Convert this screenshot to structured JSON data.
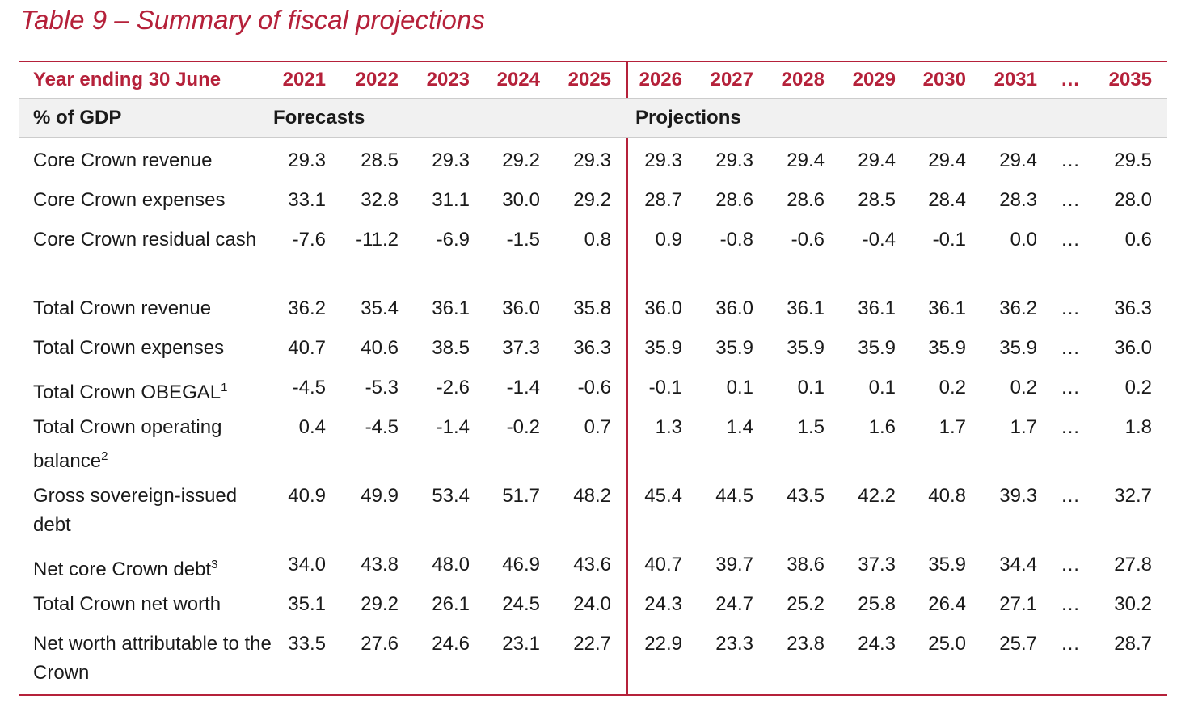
{
  "title": "Table 9 – Summary of fiscal projections",
  "header": {
    "label": "Year ending 30 June",
    "years": [
      "2021",
      "2022",
      "2023",
      "2024",
      "2025",
      "2026",
      "2027",
      "2028",
      "2029",
      "2030",
      "2031",
      "…",
      "2035"
    ]
  },
  "subheader": {
    "label": "% of GDP",
    "forecasts": "Forecasts",
    "projections": "Projections"
  },
  "rows": [
    {
      "label": "Core Crown revenue",
      "values": [
        "29.3",
        "28.5",
        "29.3",
        "29.2",
        "29.3",
        "29.3",
        "29.3",
        "29.4",
        "29.4",
        "29.4",
        "29.4",
        "…",
        "29.5"
      ]
    },
    {
      "label": "Core Crown expenses",
      "values": [
        "33.1",
        "32.8",
        "31.1",
        "30.0",
        "29.2",
        "28.7",
        "28.6",
        "28.6",
        "28.5",
        "28.4",
        "28.3",
        "…",
        "28.0"
      ]
    },
    {
      "label": "Core Crown residual cash",
      "values": [
        "-7.6",
        "-11.2",
        "-6.9",
        "-1.5",
        "0.8",
        "0.9",
        "-0.8",
        "-0.6",
        "-0.4",
        "-0.1",
        "0.0",
        "…",
        "0.6"
      ]
    },
    {
      "label": "Total Crown revenue",
      "values": [
        "36.2",
        "35.4",
        "36.1",
        "36.0",
        "35.8",
        "36.0",
        "36.0",
        "36.1",
        "36.1",
        "36.1",
        "36.2",
        "…",
        "36.3"
      ]
    },
    {
      "label": "Total Crown expenses",
      "values": [
        "40.7",
        "40.6",
        "38.5",
        "37.3",
        "36.3",
        "35.9",
        "35.9",
        "35.9",
        "35.9",
        "35.9",
        "35.9",
        "…",
        "36.0"
      ]
    },
    {
      "label": "Total Crown OBEGAL",
      "sup": "1",
      "values": [
        "-4.5",
        "-5.3",
        "-2.6",
        "-1.4",
        "-0.6",
        "-0.1",
        "0.1",
        "0.1",
        "0.1",
        "0.2",
        "0.2",
        "…",
        "0.2"
      ]
    },
    {
      "label": "Total Crown operating balance",
      "sup": "2",
      "values": [
        "0.4",
        "-4.5",
        "-1.4",
        "-0.2",
        "0.7",
        "1.3",
        "1.4",
        "1.5",
        "1.6",
        "1.7",
        "1.7",
        "…",
        "1.8"
      ]
    },
    {
      "label": "Gross sovereign-issued debt",
      "values": [
        "40.9",
        "49.9",
        "53.4",
        "51.7",
        "48.2",
        "45.4",
        "44.5",
        "43.5",
        "42.2",
        "40.8",
        "39.3",
        "…",
        "32.7"
      ]
    },
    {
      "label": "Net core Crown debt",
      "sup": "3",
      "values": [
        "34.0",
        "43.8",
        "48.0",
        "46.9",
        "43.6",
        "40.7",
        "39.7",
        "38.6",
        "37.3",
        "35.9",
        "34.4",
        "…",
        "27.8"
      ]
    },
    {
      "label": "Total Crown net worth",
      "values": [
        "35.1",
        "29.2",
        "26.1",
        "24.5",
        "24.0",
        "24.3",
        "24.7",
        "25.2",
        "25.8",
        "26.4",
        "27.1",
        "…",
        "30.2"
      ]
    },
    {
      "label": "Net worth attributable to the Crown",
      "values": [
        "33.5",
        "27.6",
        "24.6",
        "23.1",
        "22.7",
        "22.9",
        "23.3",
        "23.8",
        "24.3",
        "25.0",
        "25.7",
        "…",
        "28.7"
      ]
    }
  ],
  "colors": {
    "accent": "#b5213a",
    "band": "#f1f1f1"
  }
}
